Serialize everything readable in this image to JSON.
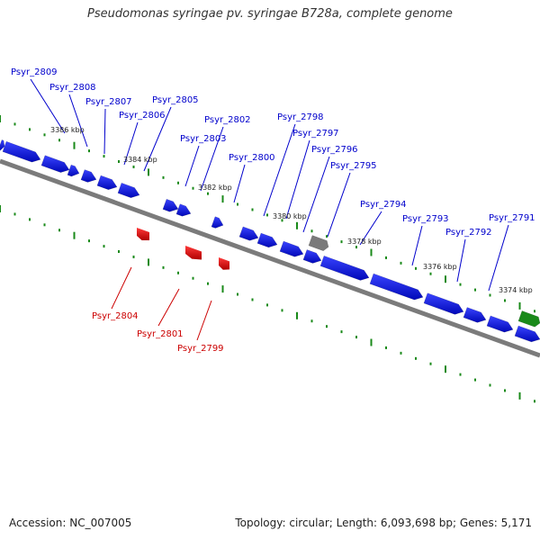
{
  "title": "Pseudomonas syringae pv. syringae B728a, complete genome",
  "footer": {
    "accession": "Accession: NC_007005",
    "summary": "Topology: circular; Length: 6,093,698 bp; Genes: 5,171"
  },
  "colors": {
    "forward_gene": "#0a14e8",
    "reverse_gene": "#e01010",
    "other_gene": "#7a7a7a",
    "rna_gene": "#1a8a1a",
    "backbone": "#808080",
    "tick": "#1a8a1a",
    "forward_label": "#0000cc",
    "reverse_label": "#cc0000"
  },
  "scale_labels": [
    "3386 kbp",
    "3384 kbp",
    "3382 kbp",
    "3380 kbp",
    "3378 kbp",
    "3376 kbp",
    "3374 kbp"
  ],
  "forward_labels": [
    "Psyr_2809",
    "Psyr_2808",
    "Psyr_2807",
    "Psyr_2806",
    "Psyr_2805",
    "Psyr_2803",
    "Psyr_2802",
    "Psyr_2800",
    "Psyr_2798",
    "Psyr_2797",
    "Psyr_2796",
    "Psyr_2795",
    "Psyr_2794",
    "Psyr_2793",
    "Psyr_2792",
    "Psyr_2791"
  ],
  "reverse_labels": [
    "Psyr_2804",
    "Psyr_2801",
    "Psyr_2799"
  ]
}
